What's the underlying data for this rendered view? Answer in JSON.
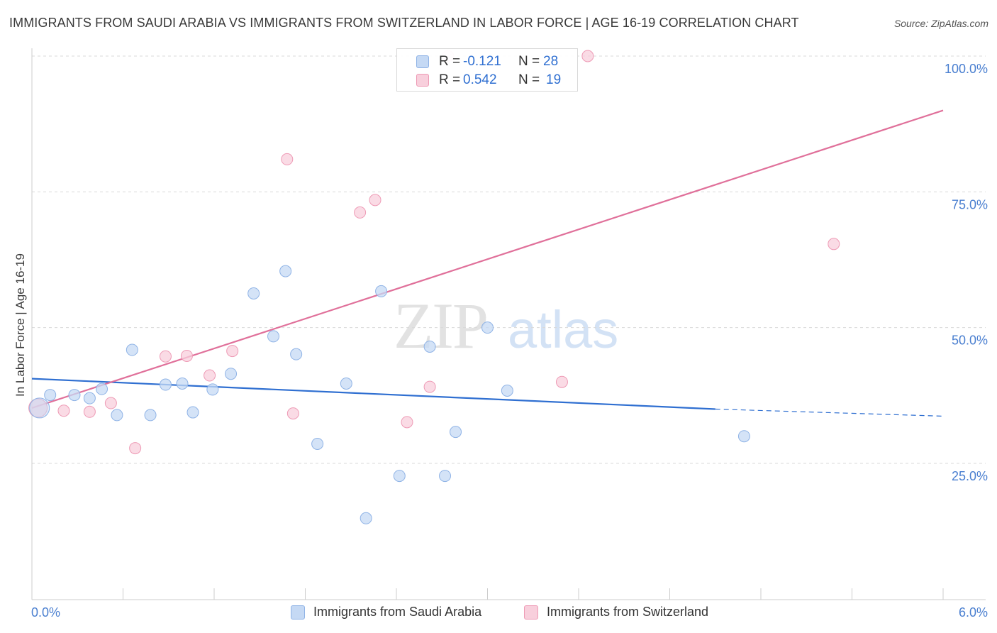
{
  "title": "IMMIGRANTS FROM SAUDI ARABIA VS IMMIGRANTS FROM SWITZERLAND IN LABOR FORCE | AGE 16-19 CORRELATION CHART",
  "source": "Source: ZipAtlas.com",
  "watermark": {
    "zip": "ZIP",
    "atlas": "atlas"
  },
  "stats": {
    "r_label": "R =",
    "n_label": "N =",
    "rows": [
      {
        "r": "-0.121",
        "n": "28"
      },
      {
        "r": "0.542",
        "n": "19"
      }
    ]
  },
  "legend": [
    {
      "label": "Immigrants from Saudi Arabia",
      "color": "#a9c8f0"
    },
    {
      "label": "Immigrants from Switzerland",
      "color": "#f5b8cb"
    }
  ],
  "colors": {
    "blue_fill": "#c5d9f4",
    "blue_stroke": "#8fb3e6",
    "blue_line": "#2f6fd1",
    "pink_fill": "#f8cfdc",
    "pink_stroke": "#ee9ab5",
    "pink_line": "#e0709a",
    "grid": "#d9d9d9",
    "axis_label": "#4a7fd0"
  },
  "chart_data": {
    "type": "scatter",
    "title": "IMMIGRANTS FROM SAUDI ARABIA VS IMMIGRANTS FROM SWITZERLAND IN LABOR FORCE | AGE 16-19 CORRELATION CHART",
    "xlabel": "",
    "ylabel": "In Labor Force | Age 16-19",
    "xlim": [
      0,
      6
    ],
    "ylim": [
      0,
      104
    ],
    "x_tick_labels": [
      "0.0%",
      "6.0%"
    ],
    "y_ticks": [
      25,
      50,
      75,
      100
    ],
    "y_tick_labels": [
      "25.0%",
      "50.0%",
      "75.0%",
      "100.0%"
    ],
    "grid": "horizontal dashed",
    "legend_position": "bottom",
    "series": [
      {
        "name": "Immigrants from Saudi Arabia",
        "points": [
          [
            0.05,
            35.2
          ],
          [
            0.28,
            37.6
          ],
          [
            0.38,
            37.0
          ],
          [
            0.46,
            38.7
          ],
          [
            0.56,
            33.9
          ],
          [
            0.66,
            45.9
          ],
          [
            0.78,
            33.9
          ],
          [
            0.88,
            39.5
          ],
          [
            0.99,
            39.7
          ],
          [
            1.06,
            34.4
          ],
          [
            1.19,
            38.6
          ],
          [
            1.31,
            41.5
          ],
          [
            1.46,
            56.3
          ],
          [
            1.59,
            48.4
          ],
          [
            1.67,
            60.4
          ],
          [
            1.74,
            45.1
          ],
          [
            1.88,
            28.6
          ],
          [
            2.07,
            39.7
          ],
          [
            2.2,
            14.9
          ],
          [
            2.3,
            56.7
          ],
          [
            2.42,
            22.7
          ],
          [
            2.62,
            46.5
          ],
          [
            2.72,
            22.7
          ],
          [
            2.79,
            30.8
          ],
          [
            3.0,
            50.0
          ],
          [
            3.13,
            38.4
          ],
          [
            4.69,
            30.0
          ],
          [
            0.12,
            37.6
          ]
        ],
        "trend": {
          "x": [
            0.0,
            4.5
          ],
          "y": [
            40.6,
            35.0
          ],
          "dashed_extension_to": [
            6.0,
            33.7
          ]
        }
      },
      {
        "name": "Immigrants from Switzerland",
        "points": [
          [
            0.04,
            35.2
          ],
          [
            0.21,
            34.7
          ],
          [
            0.38,
            34.5
          ],
          [
            0.52,
            36.1
          ],
          [
            0.68,
            27.8
          ],
          [
            0.88,
            44.7
          ],
          [
            1.02,
            44.8
          ],
          [
            1.17,
            41.2
          ],
          [
            1.32,
            45.7
          ],
          [
            1.68,
            81.0
          ],
          [
            1.72,
            34.2
          ],
          [
            2.16,
            71.2
          ],
          [
            2.26,
            73.5
          ],
          [
            2.47,
            32.6
          ],
          [
            2.62,
            39.1
          ],
          [
            2.74,
            100.0
          ],
          [
            3.49,
            40.0
          ],
          [
            3.66,
            100.0
          ],
          [
            5.28,
            65.4
          ]
        ],
        "trend": {
          "x": [
            0.0,
            6.0
          ],
          "y": [
            35.2,
            90.0
          ]
        }
      }
    ]
  }
}
